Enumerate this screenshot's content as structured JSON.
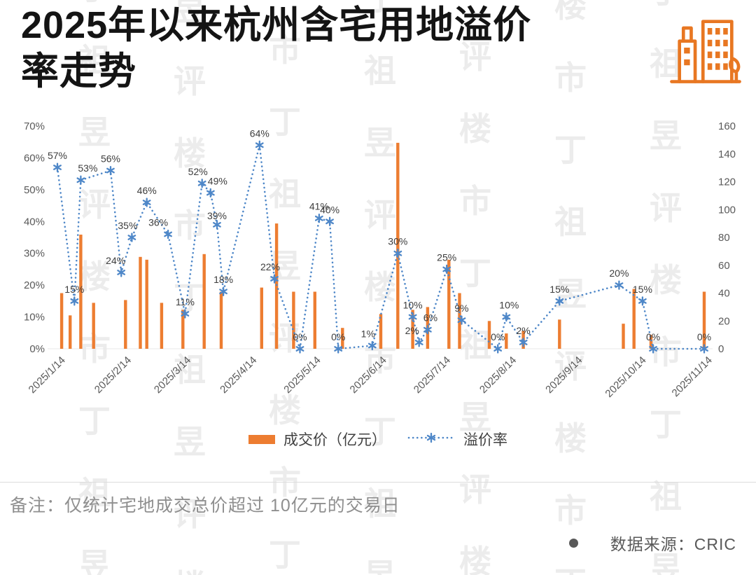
{
  "header": {
    "title_line1": "2025年以来杭州含宅用地溢价",
    "title_line2": "率走势"
  },
  "watermark": {
    "text": "丁祖昱评楼市"
  },
  "chart_data": {
    "type": "combo",
    "x_axis": {
      "tick_labels": [
        "2025/1/14",
        "2025/2/14",
        "2025/3/14",
        "2025/4/14",
        "2025/5/14",
        "2025/6/14",
        "2025/7/14",
        "2025/8/14",
        "2025/9/14",
        "2025/10/14",
        "2025/11/14"
      ],
      "tick_days": [
        0,
        31,
        59,
        90,
        120,
        151,
        181,
        212,
        243,
        273,
        304
      ],
      "max_day": 304
    },
    "left_axis": {
      "ticks": [
        "0%",
        "10%",
        "20%",
        "30%",
        "40%",
        "50%",
        "60%",
        "70%"
      ],
      "min": 0,
      "max": 70
    },
    "right_axis": {
      "ticks": [
        "0",
        "20",
        "40",
        "60",
        "80",
        "100",
        "120",
        "140",
        "160"
      ],
      "min": 0,
      "max": 160
    },
    "grid": "off",
    "legend_position": "bottom",
    "series": [
      {
        "name": "成交价（亿元）",
        "type": "bar",
        "axis": "right",
        "color": "#ED7D31",
        "points": [
          {
            "day": 2,
            "value": 40
          },
          {
            "day": 6,
            "value": 24
          },
          {
            "day": 11,
            "value": 82
          },
          {
            "day": 17,
            "value": 33
          },
          {
            "day": 32,
            "value": 35
          },
          {
            "day": 39,
            "value": 66
          },
          {
            "day": 42,
            "value": 64
          },
          {
            "day": 49,
            "value": 33
          },
          {
            "day": 59,
            "value": 28
          },
          {
            "day": 69,
            "value": 68
          },
          {
            "day": 77,
            "value": 41
          },
          {
            "day": 96,
            "value": 44
          },
          {
            "day": 103,
            "value": 90
          },
          {
            "day": 111,
            "value": 41
          },
          {
            "day": 121,
            "value": 41
          },
          {
            "day": 134,
            "value": 15
          },
          {
            "day": 152,
            "value": 25
          },
          {
            "day": 160,
            "value": 148
          },
          {
            "day": 167,
            "value": 28
          },
          {
            "day": 174,
            "value": 30
          },
          {
            "day": 184,
            "value": 64
          },
          {
            "day": 189,
            "value": 40
          },
          {
            "day": 203,
            "value": 20
          },
          {
            "day": 211,
            "value": 11
          },
          {
            "day": 219,
            "value": 13
          },
          {
            "day": 236,
            "value": 21
          },
          {
            "day": 266,
            "value": 18
          },
          {
            "day": 271,
            "value": 43
          },
          {
            "day": 279,
            "value": 10
          },
          {
            "day": 304,
            "value": 41
          }
        ]
      },
      {
        "name": "溢价率",
        "type": "line",
        "axis": "left",
        "color": "#4E87C8",
        "marker": "star",
        "line_style": "dotted",
        "points": [
          {
            "day": 0,
            "value": 57,
            "label": "57%"
          },
          {
            "day": 8,
            "value": 15,
            "label": "15%"
          },
          {
            "day": 11,
            "value": 53,
            "label": "53%",
            "dx": 10
          },
          {
            "day": 25,
            "value": 56,
            "label": "56%"
          },
          {
            "day": 30,
            "value": 24,
            "label": "24%",
            "dx": -8
          },
          {
            "day": 35,
            "value": 35,
            "label": "35%",
            "dx": -6
          },
          {
            "day": 42,
            "value": 46,
            "label": "46%"
          },
          {
            "day": 52,
            "value": 36,
            "label": "36%",
            "dx": -14
          },
          {
            "day": 60,
            "value": 11,
            "label": "11%"
          },
          {
            "day": 68,
            "value": 52,
            "label": "52%",
            "dx": -6
          },
          {
            "day": 72,
            "value": 49,
            "label": "49%",
            "dx": 10
          },
          {
            "day": 75,
            "value": 39,
            "label": "39%",
            "dy": 4
          },
          {
            "day": 78,
            "value": 18,
            "label": "18%"
          },
          {
            "day": 95,
            "value": 64,
            "label": "64%"
          },
          {
            "day": 102,
            "value": 22,
            "label": "22%",
            "dx": -6
          },
          {
            "day": 114,
            "value": 0,
            "label": "0%"
          },
          {
            "day": 123,
            "value": 41,
            "label": "41%"
          },
          {
            "day": 128,
            "value": 40,
            "label": "40%"
          },
          {
            "day": 132,
            "value": 0,
            "label": "0%"
          },
          {
            "day": 148,
            "value": 1,
            "label": "1%",
            "dx": -6
          },
          {
            "day": 160,
            "value": 30,
            "label": "30%"
          },
          {
            "day": 167,
            "value": 10,
            "label": "10%"
          },
          {
            "day": 170,
            "value": 2,
            "label": "2%",
            "dx": -10
          },
          {
            "day": 174,
            "value": 6,
            "label": "6%",
            "dx": 4
          },
          {
            "day": 183,
            "value": 25,
            "label": "25%"
          },
          {
            "day": 190,
            "value": 9,
            "label": "9%"
          },
          {
            "day": 207,
            "value": 0,
            "label": "0%"
          },
          {
            "day": 211,
            "value": 10,
            "label": "10%",
            "dx": 4
          },
          {
            "day": 219,
            "value": 2,
            "label": "2%"
          },
          {
            "day": 236,
            "value": 15,
            "label": "15%"
          },
          {
            "day": 264,
            "value": 20,
            "label": "20%"
          },
          {
            "day": 275,
            "value": 15,
            "label": "15%"
          },
          {
            "day": 280,
            "value": 0,
            "label": "0%"
          },
          {
            "day": 304,
            "value": 0,
            "label": "0%"
          }
        ]
      }
    ]
  },
  "footer": {
    "note": "备注：仅统计宅地成交总价超过 10亿元的交易日",
    "source_label": "数据来源：CRIC"
  }
}
